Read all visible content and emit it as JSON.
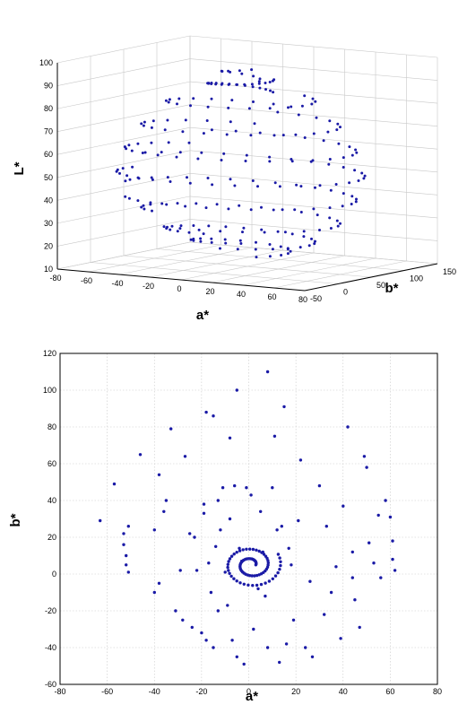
{
  "chart_data": [
    {
      "type": "scatter",
      "projection": "3d",
      "title": "",
      "xlabel": "a*",
      "ylabel": "b*",
      "zlabel": "L*",
      "xlim": [
        -80,
        80
      ],
      "ylim": [
        -50,
        150
      ],
      "zlim": [
        10,
        100
      ],
      "xticks": [
        "-80",
        "-60",
        "-40",
        "-20",
        "0",
        "20",
        "40",
        "60",
        "80"
      ],
      "yticks": [
        "-50",
        "0",
        "50",
        "100",
        "150"
      ],
      "zticks": [
        "10",
        "20",
        "30",
        "40",
        "50",
        "60",
        "70",
        "80",
        "90",
        "100"
      ],
      "grid": true,
      "marker_color": "#1a1aa6",
      "description": "Spiral path of colour samples: points wind around the L* axis from L*≈20 to L*≈95, radius largest near L*≈55 and converging near the top; ring levels approximately every 10 L* units",
      "rings": [
        {
          "L": 95,
          "r": 12,
          "n": 10
        },
        {
          "L": 90,
          "r": 20,
          "n": 26
        },
        {
          "L": 82,
          "r": 45,
          "n": 22
        },
        {
          "L": 72,
          "r": 60,
          "n": 26
        },
        {
          "L": 62,
          "r": 70,
          "n": 30
        },
        {
          "L": 52,
          "r": 75,
          "n": 34
        },
        {
          "L": 42,
          "r": 70,
          "n": 32
        },
        {
          "L": 32,
          "r": 60,
          "n": 28
        },
        {
          "L": 24,
          "r": 45,
          "n": 26
        },
        {
          "L": 20,
          "r": 30,
          "n": 20
        }
      ]
    },
    {
      "type": "scatter",
      "title": "",
      "xlabel": "a*",
      "ylabel": "b*",
      "xlim": [
        -80,
        80
      ],
      "ylim": [
        -60,
        120
      ],
      "xticks": [
        "-80",
        "-60",
        "-40",
        "-20",
        "0",
        "20",
        "40",
        "60",
        "80"
      ],
      "yticks": [
        "-60",
        "-40",
        "-20",
        "0",
        "20",
        "40",
        "60",
        "80",
        "100",
        "120"
      ],
      "grid": true,
      "marker_color": "#1a1aa6",
      "description": "Projection of the colour samples onto the a*-b* plane: concentric spiral rings around (0, 0) with a dense core near (0, 5)",
      "points": [
        [
          -63,
          29
        ],
        [
          -57,
          49
        ],
        [
          -53,
          16
        ],
        [
          -52,
          10
        ],
        [
          -52,
          5
        ],
        [
          -51,
          1
        ],
        [
          -53,
          22
        ],
        [
          -51,
          26
        ],
        [
          -46,
          65
        ],
        [
          -40,
          24
        ],
        [
          -40,
          -10
        ],
        [
          -38,
          54
        ],
        [
          -38,
          -5
        ],
        [
          -36,
          34
        ],
        [
          -35,
          40
        ],
        [
          -33,
          79
        ],
        [
          -31,
          -20
        ],
        [
          -29,
          2
        ],
        [
          -28,
          -25
        ],
        [
          -27,
          64
        ],
        [
          -25,
          22
        ],
        [
          -24,
          -29
        ],
        [
          -23,
          20
        ],
        [
          -22,
          2
        ],
        [
          -20,
          -32
        ],
        [
          -19,
          33
        ],
        [
          -19,
          38
        ],
        [
          -18,
          88
        ],
        [
          -18,
          -36
        ],
        [
          -17,
          6
        ],
        [
          -16,
          -10
        ],
        [
          -15,
          86
        ],
        [
          -15,
          -40
        ],
        [
          -14,
          15
        ],
        [
          -13,
          40
        ],
        [
          -13,
          -20
        ],
        [
          -12,
          24
        ],
        [
          -11,
          47
        ],
        [
          -10,
          1
        ],
        [
          -9,
          -17
        ],
        [
          -8,
          30
        ],
        [
          -8,
          74
        ],
        [
          -7,
          -36
        ],
        [
          -6,
          48
        ],
        [
          -5,
          100
        ],
        [
          -5,
          -45
        ],
        [
          -4,
          14
        ],
        [
          -3,
          7
        ],
        [
          -2,
          -49
        ],
        [
          -1,
          47
        ],
        [
          1,
          43
        ],
        [
          2,
          -30
        ],
        [
          4,
          -8
        ],
        [
          5,
          34
        ],
        [
          6,
          12
        ],
        [
          7,
          -12
        ],
        [
          8,
          110
        ],
        [
          8,
          -40
        ],
        [
          10,
          47
        ],
        [
          11,
          75
        ],
        [
          12,
          24
        ],
        [
          13,
          -48
        ],
        [
          14,
          26
        ],
        [
          15,
          91
        ],
        [
          16,
          -38
        ],
        [
          17,
          14
        ],
        [
          18,
          5
        ],
        [
          19,
          -25
        ],
        [
          21,
          29
        ],
        [
          22,
          62
        ],
        [
          24,
          -40
        ],
        [
          26,
          -4
        ],
        [
          27,
          -45
        ],
        [
          30,
          48
        ],
        [
          32,
          -22
        ],
        [
          33,
          26
        ],
        [
          35,
          -10
        ],
        [
          37,
          4
        ],
        [
          39,
          -35
        ],
        [
          40,
          37
        ],
        [
          42,
          80
        ],
        [
          44,
          12
        ],
        [
          45,
          -14
        ],
        [
          47,
          -29
        ],
        [
          50,
          58
        ],
        [
          51,
          17
        ],
        [
          53,
          6
        ],
        [
          55,
          32
        ],
        [
          56,
          -2
        ],
        [
          58,
          40
        ],
        [
          60,
          31
        ],
        [
          61,
          8
        ],
        [
          61,
          18
        ],
        [
          62,
          2
        ],
        [
          49,
          64
        ],
        [
          44,
          -2
        ]
      ]
    }
  ]
}
